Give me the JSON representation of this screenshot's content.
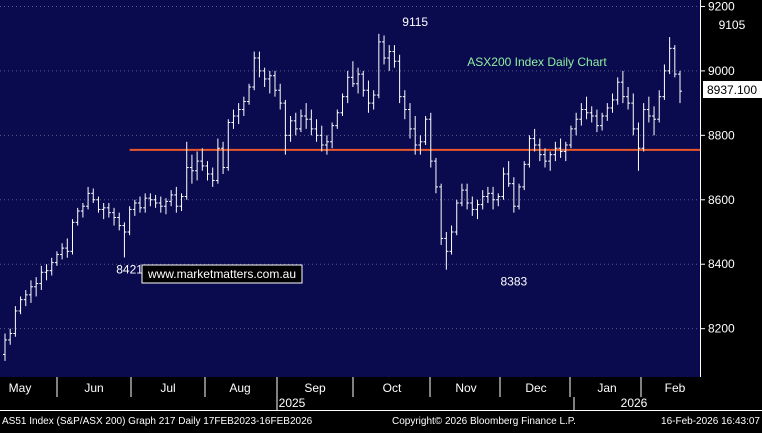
{
  "chart_data": {
    "type": "candlestick",
    "title": "ASX200 Index Daily Chart",
    "watermark": "www.marketmatters.com.au",
    "last_price": "8937.100",
    "y_ticks": [
      "8200",
      "8400",
      "8600",
      "8800",
      "9000",
      "9200"
    ],
    "ylim": [
      8050,
      9220
    ],
    "x_months": [
      "May",
      "Jun",
      "Jul",
      "Aug",
      "Sep",
      "Oct",
      "Nov",
      "Dec",
      "Jan",
      "Feb"
    ],
    "x_years": [
      "2025",
      "2026"
    ],
    "annotations": [
      {
        "text": "8421",
        "x": 24,
        "y": 8421
      },
      {
        "text": "9115",
        "x": 79,
        "y": 9115
      },
      {
        "text": "8383",
        "x": 98,
        "y": 8383
      },
      {
        "text": "9105",
        "x": 140,
        "y": 9105
      }
    ],
    "horizontal_line": {
      "value": 8755,
      "x_start": 24,
      "color": "#e8582a"
    },
    "colors": {
      "background": "#0a0a4f",
      "frame": "#000000",
      "bars": "#ffffff",
      "line": "#e8582a",
      "label_title": "#8ef0a0"
    },
    "series": [
      {
        "values": [
          [
            8120,
            8185,
            8100,
            8165
          ],
          [
            8165,
            8200,
            8150,
            8185
          ],
          [
            8185,
            8270,
            8175,
            8255
          ],
          [
            8255,
            8300,
            8245,
            8290
          ],
          [
            8290,
            8320,
            8270,
            8305
          ],
          [
            8305,
            8350,
            8280,
            8330
          ],
          [
            8330,
            8360,
            8300,
            8340
          ],
          [
            8340,
            8395,
            8320,
            8375
          ],
          [
            8375,
            8400,
            8350,
            8380
          ],
          [
            8380,
            8420,
            8365,
            8405
          ],
          [
            8405,
            8440,
            8395,
            8430
          ],
          [
            8430,
            8465,
            8415,
            8450
          ],
          [
            8450,
            8480,
            8420,
            8440
          ],
          [
            8440,
            8540,
            8430,
            8530
          ],
          [
            8530,
            8575,
            8520,
            8565
          ],
          [
            8565,
            8590,
            8545,
            8580
          ],
          [
            8580,
            8640,
            8570,
            8620
          ],
          [
            8620,
            8635,
            8590,
            8600
          ],
          [
            8600,
            8610,
            8560,
            8570
          ],
          [
            8570,
            8590,
            8540,
            8575
          ],
          [
            8575,
            8590,
            8545,
            8560
          ],
          [
            8560,
            8575,
            8520,
            8545
          ],
          [
            8545,
            8560,
            8505,
            8520
          ],
          [
            8520,
            8530,
            8421,
            8500
          ],
          [
            8500,
            8580,
            8490,
            8570
          ],
          [
            8570,
            8600,
            8550,
            8590
          ],
          [
            8590,
            8610,
            8560,
            8575
          ],
          [
            8575,
            8620,
            8560,
            8605
          ],
          [
            8605,
            8620,
            8580,
            8600
          ],
          [
            8600,
            8615,
            8575,
            8590
          ],
          [
            8590,
            8610,
            8560,
            8580
          ],
          [
            8580,
            8605,
            8555,
            8595
          ],
          [
            8595,
            8630,
            8580,
            8615
          ],
          [
            8615,
            8640,
            8560,
            8580
          ],
          [
            8580,
            8620,
            8565,
            8610
          ],
          [
            8610,
            8780,
            8600,
            8700
          ],
          [
            8700,
            8740,
            8650,
            8690
          ],
          [
            8690,
            8750,
            8660,
            8720
          ],
          [
            8720,
            8760,
            8690,
            8705
          ],
          [
            8705,
            8720,
            8660,
            8680
          ],
          [
            8680,
            8700,
            8640,
            8660
          ],
          [
            8660,
            8790,
            8650,
            8760
          ],
          [
            8760,
            8780,
            8680,
            8700
          ],
          [
            8700,
            8850,
            8690,
            8840
          ],
          [
            8840,
            8880,
            8820,
            8860
          ],
          [
            8860,
            8900,
            8835,
            8880
          ],
          [
            8880,
            8920,
            8860,
            8905
          ],
          [
            8905,
            8960,
            8895,
            8950
          ],
          [
            8950,
            9060,
            8940,
            9040
          ],
          [
            9040,
            9060,
            8980,
            9000
          ],
          [
            9000,
            9010,
            8950,
            8975
          ],
          [
            8975,
            9000,
            8930,
            8985
          ],
          [
            8985,
            9000,
            8920,
            8940
          ],
          [
            8940,
            8960,
            8880,
            8900
          ],
          [
            8900,
            8910,
            8740,
            8800
          ],
          [
            8800,
            8860,
            8780,
            8845
          ],
          [
            8845,
            8870,
            8800,
            8820
          ],
          [
            8820,
            8880,
            8810,
            8860
          ],
          [
            8860,
            8900,
            8820,
            8850
          ],
          [
            8850,
            8880,
            8800,
            8820
          ],
          [
            8820,
            8850,
            8780,
            8800
          ],
          [
            8800,
            8830,
            8750,
            8770
          ],
          [
            8770,
            8800,
            8740,
            8780
          ],
          [
            8780,
            8840,
            8760,
            8830
          ],
          [
            8830,
            8880,
            8820,
            8870
          ],
          [
            8870,
            8930,
            8860,
            8920
          ],
          [
            8920,
            9000,
            8900,
            8980
          ],
          [
            8980,
            9030,
            8950,
            8960
          ],
          [
            8960,
            9010,
            8930,
            8990
          ],
          [
            8990,
            9000,
            8920,
            8940
          ],
          [
            8940,
            8970,
            8870,
            8900
          ],
          [
            8900,
            8940,
            8880,
            8925
          ],
          [
            8925,
            9115,
            8915,
            9090
          ],
          [
            9090,
            9110,
            9020,
            9040
          ],
          [
            9040,
            9080,
            9000,
            9060
          ],
          [
            9060,
            9080,
            9010,
            9030
          ],
          [
            9030,
            9050,
            8900,
            8920
          ],
          [
            8920,
            8940,
            8850,
            8880
          ],
          [
            8880,
            8900,
            8790,
            8820
          ],
          [
            8820,
            8860,
            8740,
            8770
          ],
          [
            8770,
            8800,
            8740,
            8780
          ],
          [
            8780,
            8860,
            8770,
            8850
          ],
          [
            8850,
            8870,
            8700,
            8720
          ],
          [
            8720,
            8730,
            8620,
            8640
          ],
          [
            8640,
            8650,
            8460,
            8480
          ],
          [
            8480,
            8500,
            8383,
            8440
          ],
          [
            8440,
            8520,
            8430,
            8500
          ],
          [
            8500,
            8600,
            8490,
            8590
          ],
          [
            8590,
            8650,
            8580,
            8630
          ],
          [
            8630,
            8650,
            8570,
            8590
          ],
          [
            8590,
            8610,
            8550,
            8570
          ],
          [
            8570,
            8600,
            8540,
            8585
          ],
          [
            8585,
            8630,
            8570,
            8610
          ],
          [
            8610,
            8640,
            8590,
            8620
          ],
          [
            8620,
            8640,
            8570,
            8600
          ],
          [
            8600,
            8620,
            8580,
            8610
          ],
          [
            8610,
            8700,
            8600,
            8680
          ],
          [
            8680,
            8720,
            8640,
            8650
          ],
          [
            8650,
            8670,
            8560,
            8580
          ],
          [
            8580,
            8650,
            8570,
            8640
          ],
          [
            8640,
            8720,
            8630,
            8710
          ],
          [
            8710,
            8800,
            8700,
            8790
          ],
          [
            8790,
            8820,
            8750,
            8770
          ],
          [
            8770,
            8790,
            8720,
            8740
          ],
          [
            8740,
            8760,
            8700,
            8720
          ],
          [
            8720,
            8750,
            8690,
            8740
          ],
          [
            8740,
            8780,
            8720,
            8760
          ],
          [
            8760,
            8790,
            8730,
            8750
          ],
          [
            8750,
            8780,
            8720,
            8770
          ],
          [
            8770,
            8830,
            8760,
            8820
          ],
          [
            8820,
            8870,
            8800,
            8850
          ],
          [
            8850,
            8900,
            8830,
            8880
          ],
          [
            8880,
            8920,
            8850,
            8870
          ],
          [
            8870,
            8890,
            8840,
            8860
          ],
          [
            8860,
            8880,
            8810,
            8830
          ],
          [
            8830,
            8870,
            8815,
            8860
          ],
          [
            8860,
            8900,
            8845,
            8885
          ],
          [
            8885,
            8930,
            8870,
            8910
          ],
          [
            8910,
            8980,
            8895,
            8965
          ],
          [
            8965,
            9000,
            8900,
            8920
          ],
          [
            8920,
            8950,
            8880,
            8900
          ],
          [
            8900,
            8930,
            8800,
            8820
          ],
          [
            8820,
            8840,
            8690,
            8760
          ],
          [
            8760,
            8900,
            8750,
            8880
          ],
          [
            8880,
            8920,
            8840,
            8860
          ],
          [
            8860,
            8890,
            8800,
            8850
          ],
          [
            8850,
            8940,
            8840,
            8920
          ],
          [
            8920,
            9020,
            8910,
            9000
          ],
          [
            9000,
            9105,
            8990,
            9070
          ],
          [
            9070,
            9080,
            8980,
            8990
          ],
          [
            8990,
            9000,
            8900,
            8937.1
          ]
        ]
      }
    ]
  },
  "footer": {
    "left": "AS51 Index (S&P/ASX 200) Graph 217 Daily 17FEB2023-16FEB2026",
    "center": "Copyright© 2026 Bloomberg Finance L.P.",
    "right": "16-Feb-2026 16:43:07"
  }
}
